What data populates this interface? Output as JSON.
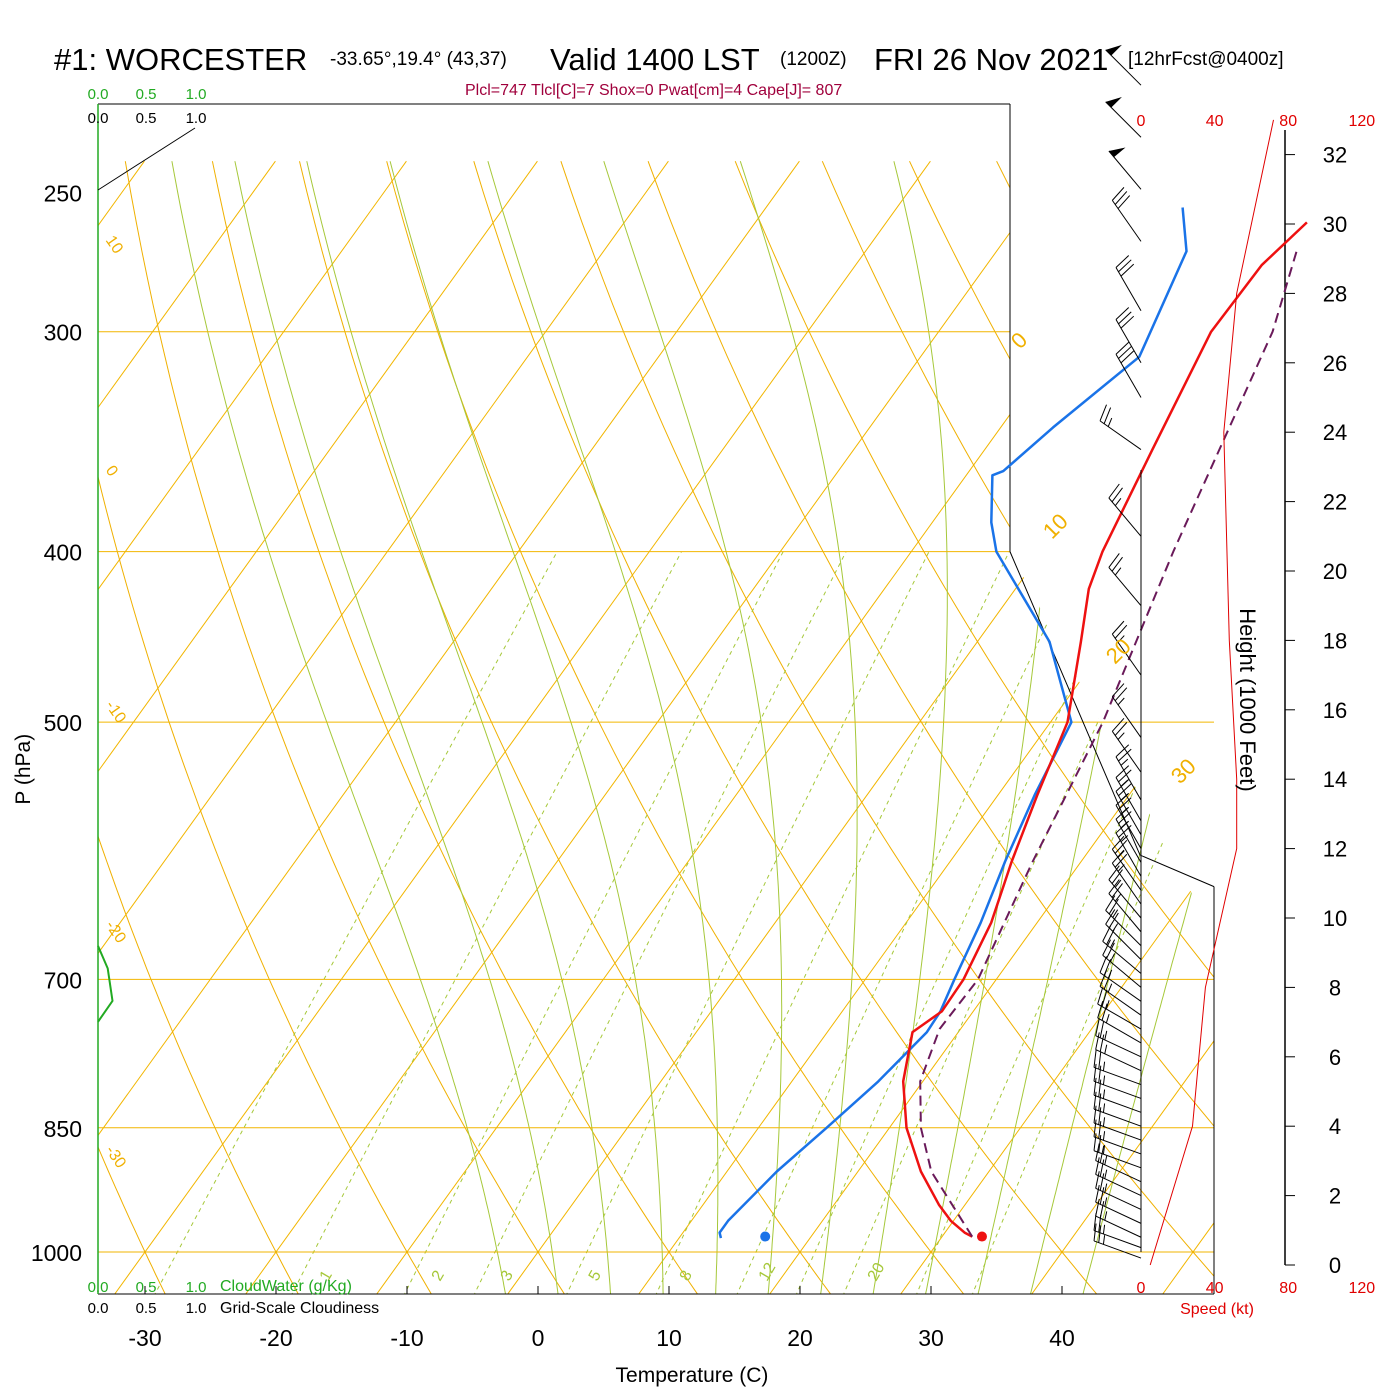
{
  "header": {
    "station": "#1: WORCESTER",
    "coords": "-33.65°,19.4° (43,37)",
    "valid": "Valid 1400 LST",
    "zulu": "(1200Z)",
    "date": "FRI 26 Nov 2021",
    "forecast": "[12hrFcst@0400z]",
    "params": "Plcl=747 Tlcl[C]=7 Shox=0 Pwat[cm]=4 Cape[J]= 807"
  },
  "colors": {
    "temperature": "#ee1111",
    "dewpoint": "#1a73e8",
    "parcel": "#6a1a5a",
    "isobar": "#f2b600",
    "dry_adiabat": "#f0b000",
    "moist_adiabat": "#a6c83a",
    "mixing_ratio": "#a6c83a",
    "cloudwater": "#22aa22",
    "wind_speed": "#e00000"
  },
  "chart_data": {
    "type": "skew-t",
    "xlabel": "Temperature (C)",
    "ylabel": "P (hPa)",
    "y2label": "Height (1000 Feet)",
    "x_ticks": [
      -30,
      -20,
      -10,
      0,
      10,
      20,
      30,
      40
    ],
    "pressure_ticks": [
      250,
      300,
      400,
      500,
      700,
      850,
      1000
    ],
    "height_ticks": [
      0,
      2,
      4,
      6,
      8,
      10,
      12,
      14,
      16,
      18,
      20,
      22,
      24,
      26,
      28,
      30,
      32
    ],
    "dry_adiabat_labels": [
      "10",
      "0",
      "-10",
      "-20",
      "-30"
    ],
    "temp_isotherm_labels": [
      "0",
      "10",
      "20",
      "30"
    ],
    "mixing_ratio_labels": [
      "1",
      "2",
      "3",
      "5",
      "8",
      "12",
      "20"
    ],
    "cloud_scale": {
      "ticks": [
        "0.0",
        "0.5",
        "1.0"
      ],
      "cloudwater_label": "CloudWater (g/Kg)",
      "cloudiness_label": "Grid-Scale Cloudiness"
    },
    "wind_speed_scale": {
      "ticks": [
        "0",
        "40",
        "80",
        "120"
      ],
      "label": "Speed (kt)"
    },
    "temperature": {
      "name": "Temperature",
      "points": [
        [
          980,
          32.3
        ],
        [
          975,
          31.5
        ],
        [
          960,
          29.8
        ],
        [
          940,
          28.0
        ],
        [
          900,
          24.8
        ],
        [
          850,
          21.3
        ],
        [
          800,
          18.5
        ],
        [
          750,
          16.5
        ],
        [
          730,
          17.6
        ],
        [
          700,
          17.5
        ],
        [
          650,
          16.5
        ],
        [
          600,
          14.7
        ],
        [
          550,
          13.0
        ],
        [
          500,
          11.3
        ],
        [
          450,
          7.9
        ],
        [
          420,
          5.6
        ],
        [
          400,
          4.6
        ],
        [
          350,
          2.8
        ],
        [
          300,
          0.8
        ],
        [
          275,
          1.0
        ],
        [
          260,
          2.1
        ]
      ]
    },
    "dewpoint": {
      "name": "Dewpoint",
      "points": [
        [
          982,
          13.2
        ],
        [
          975,
          12.8
        ],
        [
          960,
          12.8
        ],
        [
          900,
          13.8
        ],
        [
          850,
          15.2
        ],
        [
          800,
          16.6
        ],
        [
          750,
          17.6
        ],
        [
          730,
          17.5
        ],
        [
          700,
          16.8
        ],
        [
          650,
          15.7
        ],
        [
          600,
          14.2
        ],
        [
          550,
          12.8
        ],
        [
          500,
          11.6
        ],
        [
          450,
          5.5
        ],
        [
          400,
          -3.5
        ],
        [
          385,
          -5.5
        ],
        [
          362,
          -8.0
        ],
        [
          360,
          -7.4
        ],
        [
          340,
          -6.0
        ],
        [
          310,
          -3.3
        ],
        [
          270,
          -5.5
        ],
        [
          255,
          -8.2
        ]
      ]
    },
    "parcel": {
      "name": "Parcel",
      "points": [
        [
          980,
          32.3
        ],
        [
          900,
          25.6
        ],
        [
          850,
          22.4
        ],
        [
          800,
          19.8
        ],
        [
          747,
          18.4
        ],
        [
          700,
          18.6
        ],
        [
          600,
          16.3
        ],
        [
          500,
          14.0
        ],
        [
          400,
          10.0
        ],
        [
          300,
          5.5
        ],
        [
          270,
          2.9
        ]
      ]
    },
    "surface_temperature": 33.5,
    "surface_dewpoint": 16.8,
    "surface_pressure": 980,
    "cloudwater_profile": [
      [
        670,
        0.0
      ],
      [
        690,
        0.1
      ],
      [
        720,
        0.15
      ],
      [
        740,
        0.0
      ]
    ],
    "wind_speed_profile": [
      [
        0,
        5
      ],
      [
        4,
        28
      ],
      [
        8,
        35
      ],
      [
        12,
        52
      ],
      [
        14,
        52
      ],
      [
        18,
        48
      ],
      [
        24,
        45
      ],
      [
        28,
        52
      ],
      [
        32,
        68
      ],
      [
        33,
        72
      ]
    ],
    "wind_barbs": [
      {
        "h": 0.2,
        "dir": 290,
        "spd": 25
      },
      {
        "h": 0.5,
        "dir": 290,
        "spd": 25
      },
      {
        "h": 0.8,
        "dir": 295,
        "spd": 25
      },
      {
        "h": 1.2,
        "dir": 295,
        "spd": 25
      },
      {
        "h": 1.6,
        "dir": 295,
        "spd": 25
      },
      {
        "h": 2.0,
        "dir": 295,
        "spd": 25
      },
      {
        "h": 2.4,
        "dir": 295,
        "spd": 25
      },
      {
        "h": 2.8,
        "dir": 290,
        "spd": 25
      },
      {
        "h": 3.2,
        "dir": 290,
        "spd": 25
      },
      {
        "h": 3.6,
        "dir": 290,
        "spd": 25
      },
      {
        "h": 4.0,
        "dir": 290,
        "spd": 25
      },
      {
        "h": 4.4,
        "dir": 290,
        "spd": 25
      },
      {
        "h": 4.8,
        "dir": 290,
        "spd": 25
      },
      {
        "h": 5.2,
        "dir": 290,
        "spd": 25
      },
      {
        "h": 5.6,
        "dir": 295,
        "spd": 25
      },
      {
        "h": 6.0,
        "dir": 295,
        "spd": 25
      },
      {
        "h": 6.4,
        "dir": 300,
        "spd": 25
      },
      {
        "h": 6.8,
        "dir": 300,
        "spd": 25
      },
      {
        "h": 7.2,
        "dir": 305,
        "spd": 25
      },
      {
        "h": 7.6,
        "dir": 305,
        "spd": 25
      },
      {
        "h": 8.0,
        "dir": 310,
        "spd": 25
      },
      {
        "h": 8.4,
        "dir": 310,
        "spd": 25
      },
      {
        "h": 8.8,
        "dir": 315,
        "spd": 25
      },
      {
        "h": 9.2,
        "dir": 315,
        "spd": 25
      },
      {
        "h": 9.6,
        "dir": 320,
        "spd": 25
      },
      {
        "h": 10.0,
        "dir": 320,
        "spd": 25
      },
      {
        "h": 10.4,
        "dir": 325,
        "spd": 25
      },
      {
        "h": 10.8,
        "dir": 325,
        "spd": 25
      },
      {
        "h": 11.2,
        "dir": 330,
        "spd": 25
      },
      {
        "h": 11.6,
        "dir": 330,
        "spd": 25
      },
      {
        "h": 12.0,
        "dir": 330,
        "spd": 25
      },
      {
        "h": 12.4,
        "dir": 330,
        "spd": 25
      },
      {
        "h": 12.8,
        "dir": 330,
        "spd": 25
      },
      {
        "h": 13.4,
        "dir": 330,
        "spd": 25
      },
      {
        "h": 14.2,
        "dir": 325,
        "spd": 25
      },
      {
        "h": 15.2,
        "dir": 325,
        "spd": 25
      },
      {
        "h": 17.0,
        "dir": 325,
        "spd": 25
      },
      {
        "h": 19.0,
        "dir": 320,
        "spd": 25
      },
      {
        "h": 21.0,
        "dir": 320,
        "spd": 25
      },
      {
        "h": 23.5,
        "dir": 305,
        "spd": 25
      },
      {
        "h": 25.0,
        "dir": 330,
        "spd": 30
      },
      {
        "h": 26.0,
        "dir": 330,
        "spd": 30
      },
      {
        "h": 27.5,
        "dir": 330,
        "spd": 30
      },
      {
        "h": 29.5,
        "dir": 325,
        "spd": 30
      },
      {
        "h": 31.0,
        "dir": 320,
        "spd": 50
      },
      {
        "h": 32.5,
        "dir": 315,
        "spd": 50
      },
      {
        "h": 34.0,
        "dir": 315,
        "spd": 50
      }
    ]
  }
}
